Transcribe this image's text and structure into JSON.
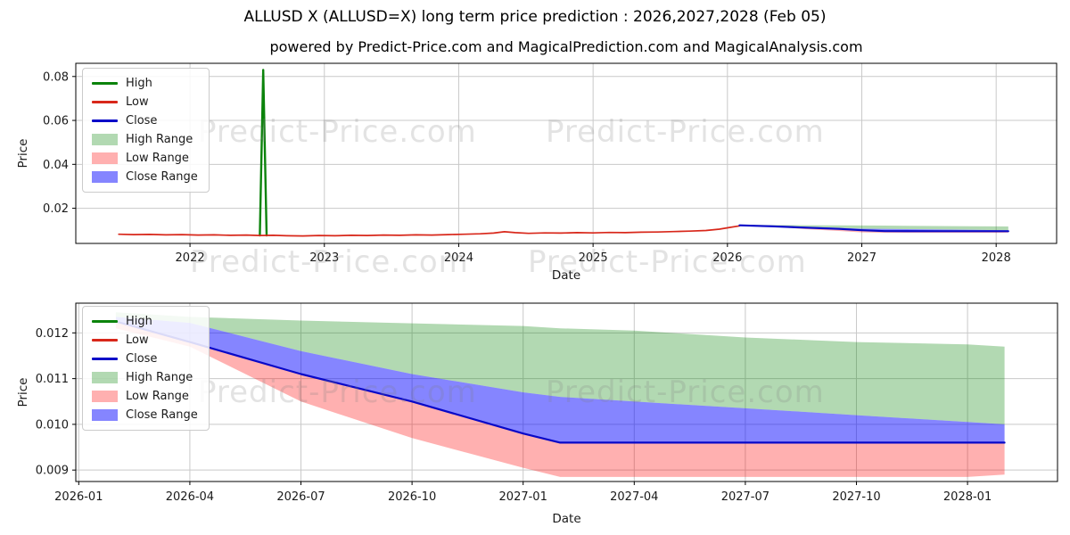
{
  "title": "ALLUSD X (ALLUSD=X) long term price prediction : 2026,2027,2028 (Feb 05)",
  "subtitle": "powered by Predict-Price.com and MagicalPrediction.com and MagicalAnalysis.com",
  "watermark": "Predict-Price.com",
  "colors": {
    "high": "#0b830b",
    "low": "#d8271a",
    "close": "#0808c8",
    "high_range": "rgba(0,128,0,0.30)",
    "low_range": "rgba(255,0,0,0.31)",
    "close_range": "rgba(0,0,255,0.48)",
    "grid": "#c9c9c9",
    "spine": "#000000",
    "tick_text": "#1a1a1a"
  },
  "legend": [
    {
      "label": "High",
      "type": "line",
      "color_key": "high"
    },
    {
      "label": "Low",
      "type": "line",
      "color_key": "low"
    },
    {
      "label": "Close",
      "type": "line",
      "color_key": "close"
    },
    {
      "label": "High Range",
      "type": "patch",
      "color_key": "high_range"
    },
    {
      "label": "Low Range",
      "type": "patch",
      "color_key": "low_range"
    },
    {
      "label": "Close Range",
      "type": "patch",
      "color_key": "close_range"
    }
  ],
  "chart_data": [
    {
      "name": "overview",
      "type": "line",
      "xlabel": "Date",
      "ylabel": "Price",
      "xlim": [
        2021.15,
        2028.45
      ],
      "ylim": [
        0.004,
        0.086
      ],
      "grid": true,
      "legend_position": "upper-left",
      "xticks": [
        {
          "x": 2022,
          "label": "2022"
        },
        {
          "x": 2023,
          "label": "2023"
        },
        {
          "x": 2024,
          "label": "2024"
        },
        {
          "x": 2025,
          "label": "2025"
        },
        {
          "x": 2026,
          "label": "2026"
        },
        {
          "x": 2027,
          "label": "2027"
        },
        {
          "x": 2028,
          "label": "2028"
        }
      ],
      "yticks": [
        {
          "y": 0.02,
          "label": "0.02"
        },
        {
          "y": 0.04,
          "label": "0.04"
        },
        {
          "y": 0.06,
          "label": "0.06"
        },
        {
          "y": 0.08,
          "label": "0.08"
        }
      ],
      "bands": [
        {
          "name": "high_range",
          "color_key": "high_range",
          "lower": [
            [
              2026.09,
              0.01235
            ],
            [
              2026.33,
              0.01222
            ],
            [
              2026.58,
              0.0116
            ],
            [
              2026.83,
              0.0111
            ],
            [
              2027.0,
              0.0107
            ],
            [
              2027.17,
              0.0106
            ],
            [
              2027.33,
              0.0105
            ],
            [
              2027.58,
              0.01035
            ],
            [
              2027.83,
              0.0102
            ],
            [
              2028.0,
              0.01005
            ],
            [
              2028.09,
              0.01
            ]
          ],
          "upper": [
            [
              2026.09,
              0.01245
            ],
            [
              2026.33,
              0.01235
            ],
            [
              2026.58,
              0.01227
            ],
            [
              2026.83,
              0.01222
            ],
            [
              2027.0,
              0.01215
            ],
            [
              2027.17,
              0.0121
            ],
            [
              2027.33,
              0.01205
            ],
            [
              2027.58,
              0.0119
            ],
            [
              2027.83,
              0.0118
            ],
            [
              2028.0,
              0.01175
            ],
            [
              2028.09,
              0.0117
            ]
          ]
        },
        {
          "name": "low_range",
          "color_key": "low_range",
          "lower": [
            [
              2026.09,
              0.0121
            ],
            [
              2026.33,
              0.0117
            ],
            [
              2026.58,
              0.0105
            ],
            [
              2026.83,
              0.0097
            ],
            [
              2027.0,
              0.00905
            ],
            [
              2027.17,
              0.00885
            ],
            [
              2027.58,
              0.00885
            ],
            [
              2028.0,
              0.00885
            ],
            [
              2028.09,
              0.0089
            ]
          ],
          "upper": [
            [
              2026.09,
              0.01225
            ],
            [
              2026.33,
              0.0118
            ],
            [
              2026.58,
              0.0112
            ],
            [
              2026.83,
              0.0106
            ],
            [
              2027.0,
              0.01
            ],
            [
              2027.17,
              0.0096
            ],
            [
              2027.6,
              0.00958
            ],
            [
              2028.0,
              0.00955
            ],
            [
              2028.09,
              0.00955
            ]
          ]
        },
        {
          "name": "close_range",
          "color_key": "close_range",
          "lower": [
            [
              2026.09,
              0.01225
            ],
            [
              2026.33,
              0.0118
            ],
            [
              2026.58,
              0.0112
            ],
            [
              2026.83,
              0.0106
            ],
            [
              2027.0,
              0.01
            ],
            [
              2027.17,
              0.0096
            ],
            [
              2027.6,
              0.00958
            ],
            [
              2028.0,
              0.00955
            ],
            [
              2028.09,
              0.00955
            ]
          ],
          "upper": [
            [
              2026.09,
              0.01235
            ],
            [
              2026.33,
              0.01222
            ],
            [
              2026.58,
              0.0116
            ],
            [
              2026.83,
              0.0111
            ],
            [
              2027.0,
              0.0107
            ],
            [
              2027.17,
              0.0106
            ],
            [
              2027.33,
              0.0105
            ],
            [
              2027.58,
              0.01035
            ],
            [
              2027.83,
              0.0102
            ],
            [
              2028.0,
              0.01005
            ],
            [
              2028.09,
              0.01
            ]
          ]
        }
      ],
      "lines": [
        {
          "name": "high",
          "color_key": "high",
          "width": 2.4,
          "points": [
            [
              2022.52,
              0.0076
            ],
            [
              2022.545,
              0.083
            ],
            [
              2022.57,
              0.0076
            ]
          ]
        },
        {
          "name": "low",
          "color_key": "low",
          "width": 1.7,
          "points": [
            [
              2021.47,
              0.0082
            ],
            [
              2021.58,
              0.008
            ],
            [
              2021.7,
              0.0081
            ],
            [
              2021.82,
              0.0079
            ],
            [
              2021.94,
              0.008
            ],
            [
              2022.06,
              0.0078
            ],
            [
              2022.18,
              0.0079
            ],
            [
              2022.3,
              0.0077
            ],
            [
              2022.42,
              0.0078
            ],
            [
              2022.52,
              0.0076
            ],
            [
              2022.62,
              0.0077
            ],
            [
              2022.72,
              0.0075
            ],
            [
              2022.84,
              0.0074
            ],
            [
              2022.96,
              0.0076
            ],
            [
              2023.08,
              0.0075
            ],
            [
              2023.2,
              0.0077
            ],
            [
              2023.32,
              0.0076
            ],
            [
              2023.44,
              0.0078
            ],
            [
              2023.56,
              0.0077
            ],
            [
              2023.68,
              0.0079
            ],
            [
              2023.8,
              0.0078
            ],
            [
              2023.92,
              0.008
            ],
            [
              2024.04,
              0.0082
            ],
            [
              2024.16,
              0.0084
            ],
            [
              2024.26,
              0.0087
            ],
            [
              2024.34,
              0.0093
            ],
            [
              2024.42,
              0.0089
            ],
            [
              2024.52,
              0.0086
            ],
            [
              2024.64,
              0.0088
            ],
            [
              2024.76,
              0.0087
            ],
            [
              2024.88,
              0.0089
            ],
            [
              2025.0,
              0.0088
            ],
            [
              2025.12,
              0.009
            ],
            [
              2025.24,
              0.0089
            ],
            [
              2025.36,
              0.0091
            ],
            [
              2025.48,
              0.0092
            ],
            [
              2025.6,
              0.0094
            ],
            [
              2025.72,
              0.0096
            ],
            [
              2025.84,
              0.0099
            ],
            [
              2025.94,
              0.0105
            ],
            [
              2026.02,
              0.0113
            ],
            [
              2026.09,
              0.012
            ]
          ]
        },
        {
          "name": "close",
          "color_key": "close",
          "width": 2.2,
          "points": [
            [
              2026.09,
              0.01225
            ],
            [
              2026.33,
              0.0118
            ],
            [
              2026.58,
              0.0112
            ],
            [
              2026.83,
              0.0106
            ],
            [
              2027.0,
              0.01
            ],
            [
              2027.17,
              0.0096
            ],
            [
              2027.6,
              0.00958
            ],
            [
              2028.0,
              0.00955
            ],
            [
              2028.09,
              0.00955
            ]
          ]
        }
      ]
    },
    {
      "name": "forecast_zoom",
      "type": "line",
      "xlabel": "Date",
      "ylabel": "Price",
      "x_unit": "months_since_2026-01",
      "xlim": [
        -0.08,
        26.43
      ],
      "ylim": [
        0.00875,
        0.01265
      ],
      "grid": true,
      "legend_position": "upper-left",
      "xticks": [
        {
          "x": 0,
          "label": "2026-01"
        },
        {
          "x": 3,
          "label": "2026-04"
        },
        {
          "x": 6,
          "label": "2026-07"
        },
        {
          "x": 9,
          "label": "2026-10"
        },
        {
          "x": 12,
          "label": "2027-01"
        },
        {
          "x": 15,
          "label": "2027-04"
        },
        {
          "x": 18,
          "label": "2027-07"
        },
        {
          "x": 21,
          "label": "2027-10"
        },
        {
          "x": 24,
          "label": "2028-01"
        }
      ],
      "yticks": [
        {
          "y": 0.009,
          "label": "0.009"
        },
        {
          "y": 0.01,
          "label": "0.010"
        },
        {
          "y": 0.011,
          "label": "0.011"
        },
        {
          "y": 0.012,
          "label": "0.012"
        }
      ],
      "bands": [
        {
          "name": "high_range",
          "color_key": "high_range",
          "lower": [
            [
              1,
              0.01235
            ],
            [
              3,
              0.01222
            ],
            [
              6,
              0.0116
            ],
            [
              9,
              0.0111
            ],
            [
              12,
              0.0107
            ],
            [
              13,
              0.0106
            ],
            [
              15,
              0.0105
            ],
            [
              18,
              0.01035
            ],
            [
              21,
              0.0102
            ],
            [
              24,
              0.01005
            ],
            [
              25,
              0.01
            ]
          ],
          "upper": [
            [
              1,
              0.01245
            ],
            [
              3,
              0.01235
            ],
            [
              6,
              0.01227
            ],
            [
              9,
              0.01221
            ],
            [
              12,
              0.01215
            ],
            [
              13,
              0.0121
            ],
            [
              15,
              0.01205
            ],
            [
              18,
              0.0119
            ],
            [
              21,
              0.0118
            ],
            [
              24,
              0.01175
            ],
            [
              25,
              0.0117
            ]
          ]
        },
        {
          "name": "low_range",
          "color_key": "low_range",
          "lower": [
            [
              1,
              0.0121
            ],
            [
              3,
              0.0117
            ],
            [
              6,
              0.0105
            ],
            [
              9,
              0.0097
            ],
            [
              12,
              0.00905
            ],
            [
              13,
              0.00885
            ],
            [
              18,
              0.00885
            ],
            [
              24,
              0.00885
            ],
            [
              25,
              0.0089
            ]
          ],
          "upper": [
            [
              1,
              0.01225
            ],
            [
              3,
              0.0118
            ],
            [
              6,
              0.0111
            ],
            [
              9,
              0.0105
            ],
            [
              12,
              0.0098
            ],
            [
              13,
              0.0096
            ],
            [
              18,
              0.0096
            ],
            [
              24,
              0.0096
            ],
            [
              25,
              0.0096
            ]
          ]
        },
        {
          "name": "close_range",
          "color_key": "close_range",
          "lower": [
            [
              1,
              0.01225
            ],
            [
              3,
              0.0118
            ],
            [
              6,
              0.0111
            ],
            [
              9,
              0.0105
            ],
            [
              12,
              0.0098
            ],
            [
              13,
              0.0096
            ],
            [
              18,
              0.0096
            ],
            [
              24,
              0.0096
            ],
            [
              25,
              0.0096
            ]
          ],
          "upper": [
            [
              1,
              0.01235
            ],
            [
              3,
              0.01222
            ],
            [
              6,
              0.0116
            ],
            [
              9,
              0.0111
            ],
            [
              12,
              0.0107
            ],
            [
              13,
              0.0106
            ],
            [
              15,
              0.0105
            ],
            [
              18,
              0.01035
            ],
            [
              21,
              0.0102
            ],
            [
              24,
              0.01005
            ],
            [
              25,
              0.01
            ]
          ]
        }
      ],
      "lines": [
        {
          "name": "close",
          "color_key": "close",
          "width": 2.2,
          "points": [
            [
              1,
              0.01225
            ],
            [
              3,
              0.0118
            ],
            [
              6,
              0.0111
            ],
            [
              9,
              0.0105
            ],
            [
              12,
              0.0098
            ],
            [
              13,
              0.0096
            ],
            [
              18,
              0.0096
            ],
            [
              24,
              0.0096
            ],
            [
              25,
              0.0096
            ]
          ]
        }
      ]
    }
  ]
}
